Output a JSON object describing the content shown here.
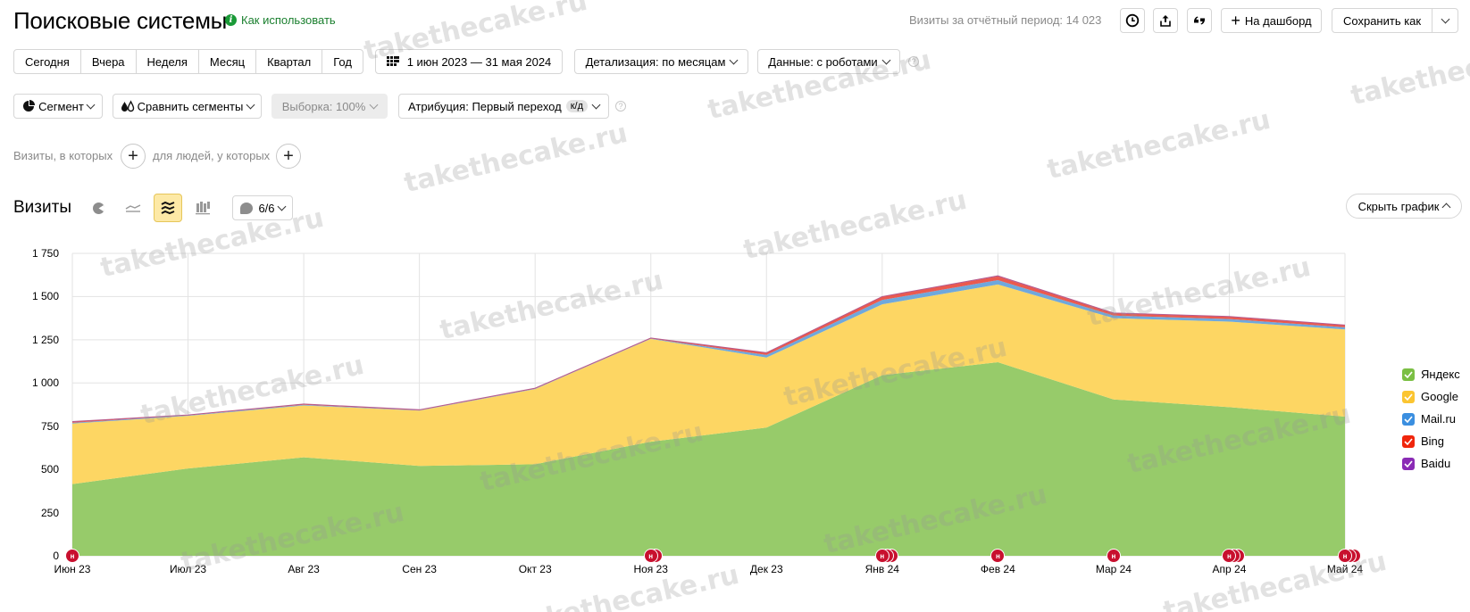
{
  "header": {
    "title": "Поисковые системы",
    "howto_label": "Как использовать",
    "visits_total": "Визиты за отчётный период: 14 023",
    "to_dashboard_label": "На дашборд",
    "save_as_label": "Сохранить как"
  },
  "toolbar": {
    "periods": [
      "Сегодня",
      "Вчера",
      "Неделя",
      "Месяц",
      "Квартал",
      "Год"
    ],
    "date_range": "1 июн 2023 — 31 мая 2024",
    "detail_label": "Детализация: по месяцам",
    "data_label": "Данные: с роботами",
    "segment_label": "Сегмент",
    "compare_label": "Сравнить сегменты",
    "sample_label": "Выборка: 100%",
    "attribution_label": "Атрибуция: Первый переход",
    "attribution_badge": "к/д"
  },
  "filters": {
    "visits_where": "Визиты, в которых",
    "people_where": "для людей, у которых"
  },
  "chart_section": {
    "title": "Визиты",
    "series_counter": "6/6",
    "hide_chart_label": "Скрыть график"
  },
  "colors": {
    "yandex": "#97cb6a",
    "google": "#fdd663",
    "mailru": "#6fa8dc",
    "bing": "#ea5a4f",
    "baidu": "#8e44ad",
    "accent_green": "#1a7f2e",
    "annotation_red": "#c8102e"
  },
  "chart_data": {
    "type": "area",
    "stacked": true,
    "title": "Визиты",
    "xlabel": "",
    "ylabel": "",
    "ylim": [
      0,
      1750
    ],
    "yticks": [
      "0",
      "250",
      "500",
      "750",
      "1 000",
      "1 250",
      "1 500",
      "1 750"
    ],
    "grid": true,
    "legend_position": "right",
    "categories": [
      "Июн 23",
      "Июл 23",
      "Авг 23",
      "Сен 23",
      "Окт 23",
      "Ноя 23",
      "Дек 23",
      "Янв 24",
      "Фев 24",
      "Мар 24",
      "Апр 24",
      "Май 24"
    ],
    "series": [
      {
        "name": "Яндекс",
        "values": [
          415,
          505,
          570,
          520,
          530,
          660,
          742,
          1045,
          1120,
          905,
          860,
          805
        ]
      },
      {
        "name": "Google",
        "values": [
          350,
          305,
          300,
          320,
          435,
          595,
          405,
          410,
          450,
          470,
          495,
          505
        ]
      },
      {
        "name": "Mail.ru",
        "values": [
          5,
          3,
          4,
          2,
          2,
          2,
          15,
          25,
          25,
          15,
          15,
          12
        ]
      },
      {
        "name": "Bing",
        "values": [
          5,
          2,
          3,
          2,
          2,
          2,
          13,
          20,
          22,
          13,
          13,
          12
        ]
      },
      {
        "name": "Baidu",
        "values": [
          2,
          0,
          1,
          1,
          1,
          1,
          0,
          0,
          3,
          2,
          2,
          1
        ]
      }
    ],
    "annotations": [
      {
        "x": "Июн 23",
        "count": 1,
        "label": "н"
      },
      {
        "x": "Ноя 23",
        "count": 2,
        "label": "н"
      },
      {
        "x": "Янв 24",
        "count": 3,
        "label": "н"
      },
      {
        "x": "Фев 24",
        "count": 1,
        "label": "н"
      },
      {
        "x": "Мар 24",
        "count": 1,
        "label": "н"
      },
      {
        "x": "Апр 24",
        "count": 3,
        "label": "н"
      },
      {
        "x": "Май 24",
        "count": 3,
        "label": "н"
      }
    ]
  },
  "legend": [
    {
      "label": "Яндекс",
      "color": "#7bbf44"
    },
    {
      "label": "Google",
      "color": "#fbc531"
    },
    {
      "label": "Mail.ru",
      "color": "#3b8fe0"
    },
    {
      "label": "Bing",
      "color": "#f0260c"
    },
    {
      "label": "Baidu",
      "color": "#8a2bb5"
    }
  ],
  "watermark": "takethecake.ru"
}
